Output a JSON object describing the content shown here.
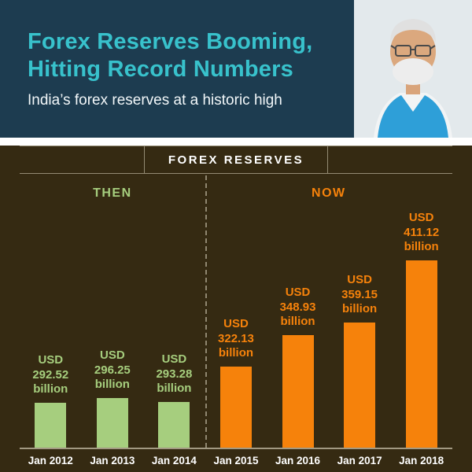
{
  "header": {
    "title_line1": "Forex Reserves Booming,",
    "title_line2": "Hitting Record Numbers",
    "subtitle": "India’s forex reserves at a historic high"
  },
  "section": {
    "title": "FOREX RESERVES"
  },
  "colors": {
    "header_bg": "#1d3c50",
    "title_accent": "#38c2cc",
    "chart_bg": "#352a12",
    "then_green": "#a6ce7e",
    "now_orange": "#f6820b"
  },
  "chart_data": {
    "type": "bar",
    "title": "FOREX RESERVES",
    "value_prefix": "USD",
    "value_suffix": "billion",
    "unit": "USD billion",
    "ylim": [
      255,
      420
    ],
    "grid": false,
    "legend_position": "none",
    "categories": [
      "Jan 2012",
      "Jan 2013",
      "Jan 2014",
      "Jan 2015",
      "Jan 2016",
      "Jan 2017",
      "Jan 2018"
    ],
    "groups": [
      {
        "label": "THEN",
        "color": "#a6ce7e",
        "bars": [
          {
            "category": "Jan 2012",
            "value": 292.52
          },
          {
            "category": "Jan 2013",
            "value": 296.25
          },
          {
            "category": "Jan 2014",
            "value": 293.28
          }
        ]
      },
      {
        "label": "NOW",
        "color": "#f6820b",
        "bars": [
          {
            "category": "Jan 2015",
            "value": 322.13
          },
          {
            "category": "Jan 2016",
            "value": 348.93
          },
          {
            "category": "Jan 2017",
            "value": 359.15
          },
          {
            "category": "Jan 2018",
            "value": 411.12
          }
        ]
      }
    ]
  }
}
